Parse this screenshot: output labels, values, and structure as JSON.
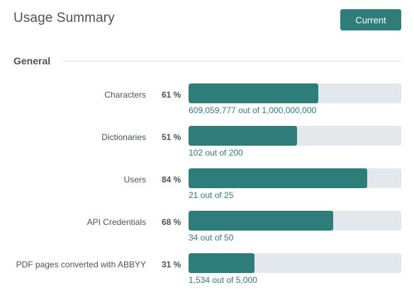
{
  "header": {
    "title": "Usage Summary",
    "current_label": "Current"
  },
  "section": {
    "title": "General"
  },
  "usage": [
    {
      "label": "Characters",
      "percent": "61 %",
      "fraction": 0.61,
      "detail": "609,059,777 out of 1,000,000,000"
    },
    {
      "label": "Dictionaries",
      "percent": "51 %",
      "fraction": 0.51,
      "detail": "102 out of 200"
    },
    {
      "label": "Users",
      "percent": "84 %",
      "fraction": 0.84,
      "detail": "21 out of 25"
    },
    {
      "label": "API Credentials",
      "percent": "68 %",
      "fraction": 0.68,
      "detail": "34 out of 50"
    },
    {
      "label": "PDF pages converted with ABBYY",
      "percent": "31 %",
      "fraction": 0.31,
      "detail": "1,534 out of 5,000"
    }
  ],
  "colors": {
    "accent": "#2e7d7b",
    "track": "#e3e8ec",
    "text": "#4a5560"
  }
}
